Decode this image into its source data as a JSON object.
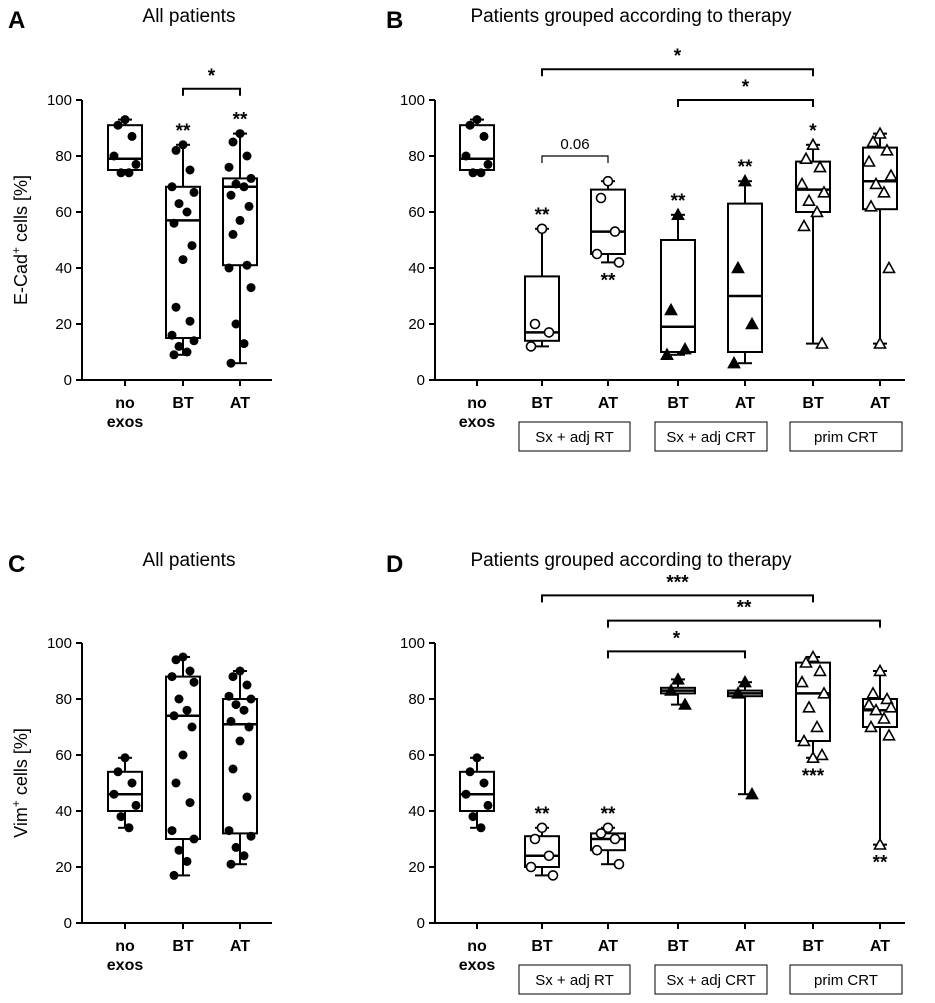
{
  "chart_data": [
    {
      "id": "A",
      "letter": "A",
      "type": "box",
      "title": "All patients",
      "ylabel_main": "E-Cad",
      "ylabel_sup": "+",
      "ylabel_rest": " cells [%]",
      "ylim": [
        0,
        100
      ],
      "yticks": [
        "0",
        "20",
        "40",
        "60",
        "80",
        "100"
      ],
      "categories": [
        {
          "lines": [
            "no",
            "exos"
          ]
        },
        {
          "lines": [
            "BT"
          ]
        },
        {
          "lines": [
            "AT"
          ]
        }
      ],
      "boxes": [
        {
          "min": 74,
          "q1": 75,
          "median": 79,
          "q3": 91,
          "max": 93,
          "marker": "dot",
          "points": [
            93,
            91,
            87,
            80,
            77,
            74,
            74
          ],
          "sig": ""
        },
        {
          "min": 9,
          "q1": 15,
          "median": 57,
          "q3": 69,
          "max": 84,
          "marker": "dot",
          "points": [
            84,
            82,
            75,
            69,
            67,
            63,
            60,
            56,
            48,
            43,
            26,
            21,
            16,
            14,
            12,
            10,
            9
          ],
          "sig": "**"
        },
        {
          "min": 6,
          "q1": 41,
          "median": 69,
          "q3": 72,
          "max": 88,
          "marker": "dot",
          "points": [
            88,
            85,
            80,
            76,
            72,
            70,
            69,
            66,
            62,
            57,
            52,
            41,
            40,
            33,
            20,
            13,
            6
          ],
          "sig": "**"
        }
      ],
      "brackets": [
        {
          "from": 1,
          "to": 2,
          "level": 104,
          "label": "*"
        }
      ]
    },
    {
      "id": "B",
      "letter": "B",
      "type": "box",
      "title": "Patients grouped according to therapy",
      "ylim": [
        0,
        100
      ],
      "yticks": [
        "0",
        "20",
        "40",
        "60",
        "80",
        "100"
      ],
      "categories": [
        {
          "lines": [
            "no",
            "exos"
          ]
        },
        {
          "lines": [
            "BT"
          ]
        },
        {
          "lines": [
            "AT"
          ]
        },
        {
          "lines": [
            "BT"
          ]
        },
        {
          "lines": [
            "AT"
          ]
        },
        {
          "lines": [
            "BT"
          ]
        },
        {
          "lines": [
            "AT"
          ]
        }
      ],
      "groups": [
        {
          "label": "Sx + adj RT",
          "from": 1,
          "to": 2
        },
        {
          "label": "Sx + adj CRT",
          "from": 3,
          "to": 4
        },
        {
          "label": "prim CRT",
          "from": 5,
          "to": 6
        }
      ],
      "boxes": [
        {
          "min": 74,
          "q1": 75,
          "median": 79,
          "q3": 91,
          "max": 93,
          "marker": "dot",
          "points": [
            93,
            91,
            87,
            80,
            77,
            74,
            74
          ],
          "sig": ""
        },
        {
          "min": 12,
          "q1": 14,
          "median": 17,
          "q3": 37,
          "max": 54,
          "marker": "circle",
          "points": [
            54,
            20,
            17,
            12
          ],
          "sig": "**"
        },
        {
          "min": 42,
          "q1": 45,
          "median": 53,
          "q3": 68,
          "max": 71,
          "marker": "circle",
          "points": [
            71,
            65,
            53,
            45,
            42
          ],
          "sig": "**",
          "sigBelow": true
        },
        {
          "min": 9,
          "q1": 10,
          "median": 19,
          "q3": 50,
          "max": 59,
          "marker": "tri",
          "points": [
            59,
            25,
            11,
            9
          ],
          "sig": "**"
        },
        {
          "min": 6,
          "q1": 10,
          "median": 30,
          "q3": 63,
          "max": 71,
          "marker": "tri",
          "points": [
            71,
            40,
            20,
            6
          ],
          "sig": "**"
        },
        {
          "min": 13,
          "q1": 60,
          "median": 68,
          "q3": 78,
          "max": 84,
          "marker": "tri_open",
          "points": [
            84,
            79,
            76,
            70,
            67,
            64,
            60,
            55,
            13
          ],
          "sig": "*"
        },
        {
          "min": 13,
          "q1": 61,
          "median": 71,
          "q3": 83,
          "max": 88,
          "marker": "tri_open",
          "points": [
            88,
            85,
            82,
            78,
            73,
            70,
            67,
            62,
            40,
            13
          ],
          "sig": ""
        }
      ],
      "brackets": [
        {
          "from": 1,
          "to": 5,
          "level": 111,
          "label": "*"
        },
        {
          "from": 3,
          "to": 5,
          "level": 100,
          "label": "*"
        },
        {
          "from": 1,
          "to": 2,
          "level": 80,
          "label": "0.06",
          "thin": true
        }
      ]
    },
    {
      "id": "C",
      "letter": "C",
      "type": "box",
      "title": "All patients",
      "ylabel_main": "Vim",
      "ylabel_sup": "+",
      "ylabel_rest": " cells [%]",
      "ylim": [
        0,
        100
      ],
      "yticks": [
        "0",
        "20",
        "40",
        "60",
        "80",
        "100"
      ],
      "categories": [
        {
          "lines": [
            "no",
            "exos"
          ]
        },
        {
          "lines": [
            "BT"
          ]
        },
        {
          "lines": [
            "AT"
          ]
        }
      ],
      "boxes": [
        {
          "min": 34,
          "q1": 40,
          "median": 46,
          "q3": 54,
          "max": 59,
          "marker": "dot",
          "points": [
            59,
            54,
            50,
            46,
            42,
            38,
            34
          ],
          "sig": ""
        },
        {
          "min": 17,
          "q1": 30,
          "median": 74,
          "q3": 88,
          "max": 95,
          "marker": "dot",
          "points": [
            95,
            94,
            90,
            88,
            86,
            80,
            76,
            74,
            70,
            60,
            50,
            43,
            33,
            30,
            26,
            22,
            17
          ],
          "sig": ""
        },
        {
          "min": 21,
          "q1": 32,
          "median": 71,
          "q3": 80,
          "max": 90,
          "marker": "dot",
          "points": [
            90,
            88,
            85,
            81,
            80,
            78,
            76,
            72,
            70,
            65,
            55,
            45,
            33,
            31,
            27,
            24,
            21
          ],
          "sig": ""
        }
      ],
      "brackets": []
    },
    {
      "id": "D",
      "letter": "D",
      "type": "box",
      "title": "Patients grouped according to therapy",
      "ylim": [
        0,
        100
      ],
      "yticks": [
        "0",
        "20",
        "40",
        "60",
        "80",
        "100"
      ],
      "categories": [
        {
          "lines": [
            "no",
            "exos"
          ]
        },
        {
          "lines": [
            "BT"
          ]
        },
        {
          "lines": [
            "AT"
          ]
        },
        {
          "lines": [
            "BT"
          ]
        },
        {
          "lines": [
            "AT"
          ]
        },
        {
          "lines": [
            "BT"
          ]
        },
        {
          "lines": [
            "AT"
          ]
        }
      ],
      "groups": [
        {
          "label": "Sx + adj RT",
          "from": 1,
          "to": 2
        },
        {
          "label": "Sx + adj CRT",
          "from": 3,
          "to": 4
        },
        {
          "label": "prim CRT",
          "from": 5,
          "to": 6
        }
      ],
      "boxes": [
        {
          "min": 34,
          "q1": 40,
          "median": 46,
          "q3": 54,
          "max": 59,
          "marker": "dot",
          "points": [
            59,
            54,
            50,
            46,
            42,
            38,
            34
          ],
          "sig": ""
        },
        {
          "min": 17,
          "q1": 20,
          "median": 24,
          "q3": 31,
          "max": 34,
          "marker": "circle",
          "points": [
            34,
            30,
            24,
            20,
            17
          ],
          "sig": "**"
        },
        {
          "min": 21,
          "q1": 26,
          "median": 30,
          "q3": 32,
          "max": 34,
          "marker": "circle",
          "points": [
            34,
            32,
            30,
            26,
            21
          ],
          "sig": "**"
        },
        {
          "min": 78,
          "q1": 82,
          "median": 83,
          "q3": 84,
          "max": 87,
          "marker": "tri",
          "points": [
            87,
            83,
            78
          ],
          "sig": ""
        },
        {
          "min": 46,
          "q1": 81,
          "median": 82,
          "q3": 83,
          "max": 86,
          "marker": "tri",
          "points": [
            86,
            82,
            46
          ],
          "sig": ""
        },
        {
          "min": 59,
          "q1": 65,
          "median": 82,
          "q3": 93,
          "max": 95,
          "marker": "tri_open",
          "points": [
            95,
            93,
            90,
            86,
            82,
            77,
            70,
            65,
            60,
            59
          ],
          "sig": "***",
          "sigBelow": true
        },
        {
          "min": 28,
          "q1": 70,
          "median": 76,
          "q3": 80,
          "max": 90,
          "marker": "tri_open",
          "points": [
            90,
            82,
            80,
            78,
            77,
            76,
            73,
            70,
            67,
            28
          ],
          "sig": "**",
          "sigBelow": true
        }
      ],
      "brackets": [
        {
          "from": 1,
          "to": 5,
          "level": 117,
          "label": "***"
        },
        {
          "from": 2,
          "to": 6,
          "level": 108,
          "label": "**"
        },
        {
          "from": 2,
          "to": 4,
          "level": 97,
          "label": "*"
        }
      ]
    }
  ]
}
